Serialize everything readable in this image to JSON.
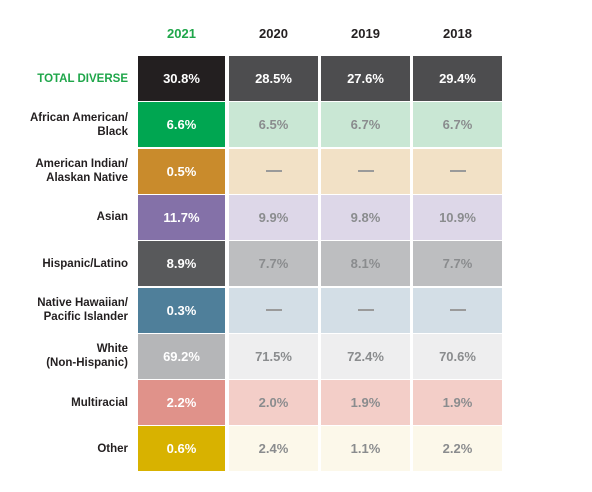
{
  "chart_data": {
    "type": "table",
    "columns": [
      "2021",
      "2020",
      "2019",
      "2018"
    ],
    "rows": [
      {
        "label": "TOTAL DIVERSE",
        "values": [
          "30.8%",
          "28.5%",
          "27.6%",
          "29.4%"
        ],
        "color": "#231f20",
        "tint": "#4d4d4f",
        "textColor": "#ffffff"
      },
      {
        "label": "African American/\nBlack",
        "values": [
          "6.6%",
          "6.5%",
          "6.7%",
          "6.7%"
        ],
        "color": "#00a651",
        "tint": "#c9e7d4",
        "textColor": "#8a8c8e"
      },
      {
        "label": "American Indian/\nAlaskan Native",
        "values": [
          "0.5%",
          "—",
          "—",
          "—"
        ],
        "color": "#c98b2c",
        "tint": "#f2e1c6",
        "textColor": "#9a9a9a"
      },
      {
        "label": "Asian",
        "values": [
          "11.7%",
          "9.9%",
          "9.8%",
          "10.9%"
        ],
        "color": "#8471a8",
        "tint": "#ddd7e8",
        "textColor": "#8a8c8e"
      },
      {
        "label": "Hispanic/Latino",
        "values": [
          "8.9%",
          "7.7%",
          "8.1%",
          "7.7%"
        ],
        "color": "#58595b",
        "tint": "#bdbec0",
        "textColor": "#8a8c8e"
      },
      {
        "label": "Native Hawaiian/\nPacific Islander",
        "values": [
          "0.3%",
          "—",
          "—",
          "—"
        ],
        "color": "#4f7f9a",
        "tint": "#d3dee6",
        "textColor": "#9a9a9a"
      },
      {
        "label": "White\n(Non-Hispanic)",
        "values": [
          "69.2%",
          "71.5%",
          "72.4%",
          "70.6%"
        ],
        "color": "#b5b6b8",
        "tint": "#eeeeef",
        "textColor": "#8a8c8e"
      },
      {
        "label": "Multiracial",
        "values": [
          "2.2%",
          "2.0%",
          "1.9%",
          "1.9%"
        ],
        "color": "#e0928a",
        "tint": "#f3cec8",
        "textColor": "#8a8c8e"
      },
      {
        "label": "Other",
        "values": [
          "0.6%",
          "2.4%",
          "1.1%",
          "2.2%"
        ],
        "color": "#d8b200",
        "tint": "#fcf8ea",
        "textColor": "#8a8c8e"
      }
    ]
  }
}
